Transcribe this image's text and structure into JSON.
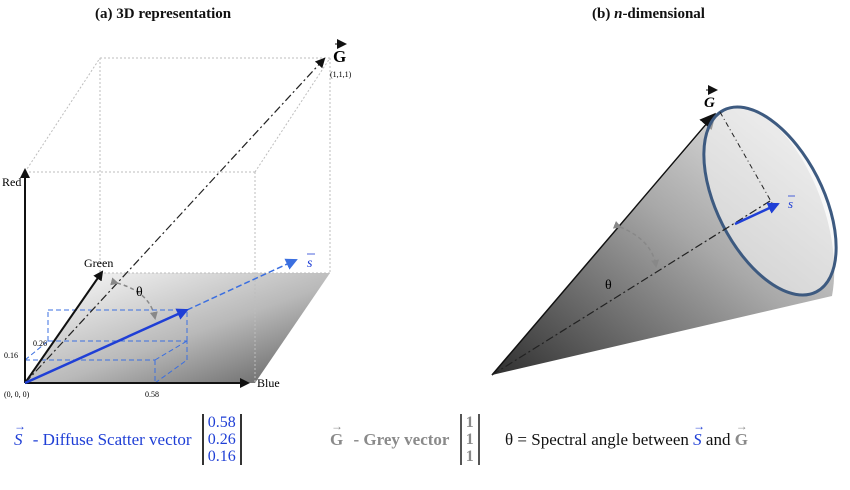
{
  "panel_a": {
    "title": "(a) 3D representation",
    "axes": {
      "red": "Red",
      "green": "Green",
      "blue": "Blue"
    },
    "origin": "(0, 0, 0)",
    "grey_vector": {
      "symbol": "G",
      "coords": "(1,1,1)"
    },
    "scatter_vector": {
      "symbol": "s"
    },
    "angle": "θ",
    "ticks": {
      "blue": "0.58",
      "green": "0.26",
      "red": "0.16"
    }
  },
  "panel_b": {
    "title_prefix": "(b) ",
    "title_italic": "n",
    "title_suffix": "-dimensional",
    "grey_vector": {
      "symbol": "G"
    },
    "scatter_vector": {
      "symbol": "s"
    },
    "angle": "θ"
  },
  "legend": {
    "scatter": {
      "symbol": "S",
      "label": "- Diffuse Scatter vector",
      "values": [
        "0.58",
        "0.26",
        "0.16"
      ]
    },
    "grey": {
      "symbol": "G",
      "label": "- Grey vector",
      "values": [
        "1",
        "1",
        "1"
      ]
    },
    "angle": {
      "symbol": "θ",
      "text_1": "= Spectral angle between",
      "s_symbol": "S",
      "text_2": "and",
      "g_symbol": "G"
    }
  },
  "colors": {
    "scatter_blue": "#1f3fd6",
    "dashed_blue": "#3b6fe0",
    "cone_edge": "#3d5a80",
    "grey_text": "#8a8a8a"
  }
}
